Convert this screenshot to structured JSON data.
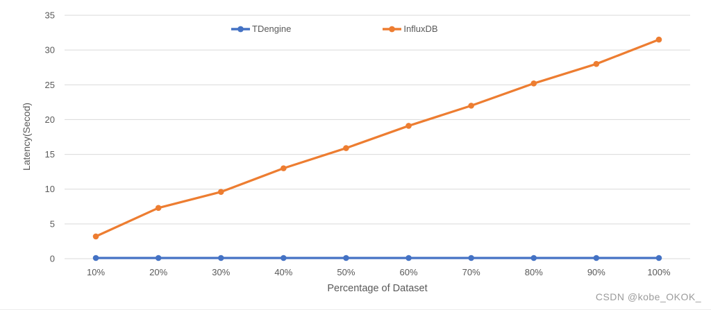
{
  "watermark": {
    "text": "CSDN @kobe_OKOK_"
  },
  "chart_data": {
    "type": "line",
    "categories": [
      "10%",
      "20%",
      "30%",
      "40%",
      "50%",
      "60%",
      "70%",
      "80%",
      "90%",
      "100%"
    ],
    "series": [
      {
        "name": "TDengine",
        "color": "#4472C4",
        "values": [
          0.1,
          0.1,
          0.1,
          0.1,
          0.1,
          0.1,
          0.1,
          0.1,
          0.1,
          0.1
        ]
      },
      {
        "name": "InfluxDB",
        "color": "#ED7D31",
        "values": [
          3.2,
          7.3,
          9.6,
          13.0,
          15.9,
          19.1,
          22.0,
          25.2,
          28.0,
          31.5
        ]
      }
    ],
    "title": "",
    "xlabel": "Percentage of Dataset",
    "ylabel": "Latency(Secod)",
    "ylim": [
      0,
      35
    ],
    "yticks": [
      0,
      5,
      10,
      15,
      20,
      25,
      30,
      35
    ],
    "grid": "horizontal",
    "gridline_color": "#d9d9d9",
    "legend_position": "top-center"
  }
}
